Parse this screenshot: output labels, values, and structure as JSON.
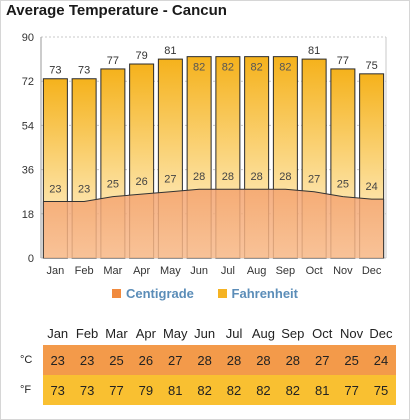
{
  "title": "Average Temperature - Cancun",
  "colors": {
    "centigrade": "#f08a3e",
    "fahrenheit": "#f5b323",
    "grid": "#c8c8c8",
    "legend_text": "#5b8db8"
  },
  "legend": {
    "centigrade": "Centigrade",
    "fahrenheit": "Fahrenheit"
  },
  "table": {
    "months": [
      "Jan",
      "Feb",
      "Mar",
      "Apr",
      "May",
      "Jun",
      "Jul",
      "Aug",
      "Sep",
      "Oct",
      "Nov",
      "Dec"
    ],
    "celsius_label": "°C",
    "fahrenheit_label": "°F",
    "celsius": [
      "23",
      "23",
      "25",
      "26",
      "27",
      "28",
      "28",
      "28",
      "28",
      "27",
      "25",
      "24"
    ],
    "fahrenheit": [
      "73",
      "73",
      "77",
      "79",
      "81",
      "82",
      "82",
      "82",
      "82",
      "81",
      "77",
      "75"
    ]
  },
  "chart_data": {
    "type": "bar",
    "title": "Average Temperature - Cancun",
    "categories": [
      "Jan",
      "Feb",
      "Mar",
      "Apr",
      "May",
      "Jun",
      "Jul",
      "Aug",
      "Sep",
      "Oct",
      "Nov",
      "Dec"
    ],
    "series": [
      {
        "name": "Fahrenheit",
        "type": "bar",
        "values": [
          73,
          73,
          77,
          79,
          81,
          82,
          82,
          82,
          82,
          81,
          77,
          75
        ]
      },
      {
        "name": "Centigrade",
        "type": "area",
        "values": [
          23,
          23,
          25,
          26,
          27,
          28,
          28,
          28,
          28,
          27,
          25,
          24
        ]
      }
    ],
    "ylim": [
      0,
      90
    ],
    "yticks": [
      0,
      18,
      36,
      54,
      72,
      90
    ],
    "grid": true,
    "legend": "bottom"
  }
}
